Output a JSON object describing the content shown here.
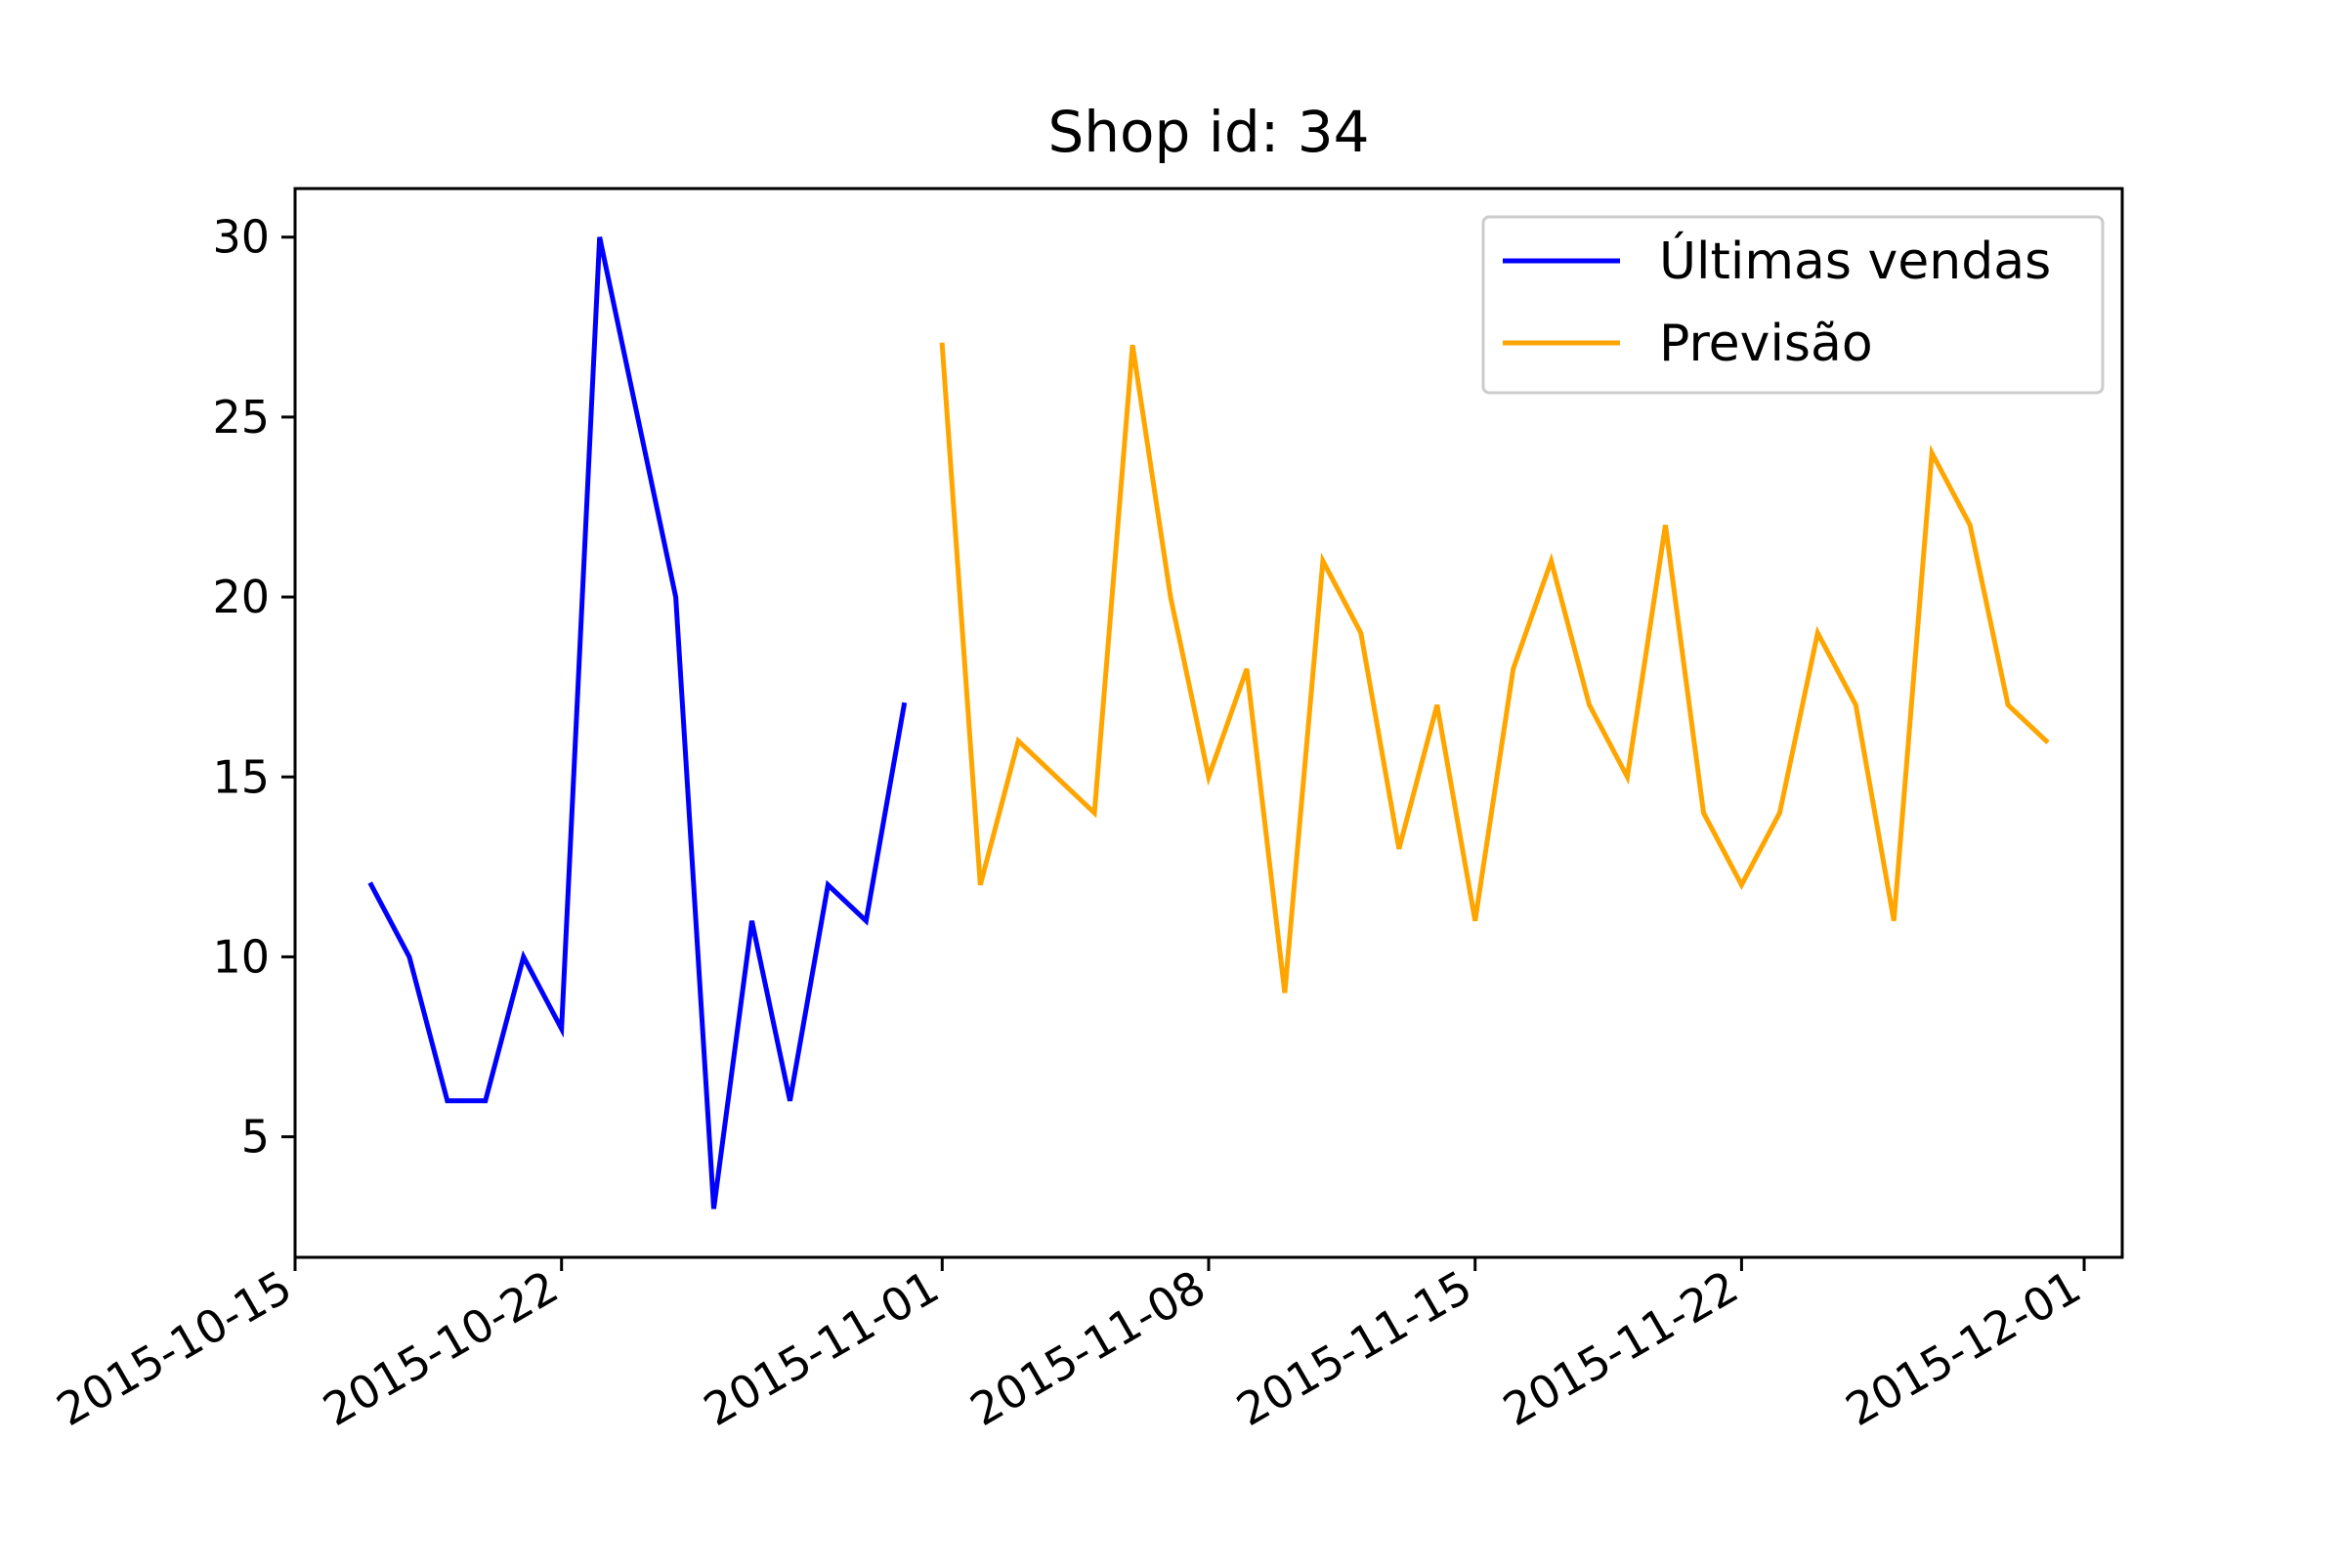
{
  "chart_data": {
    "type": "line",
    "title": "Shop id: 34",
    "xlabel": "",
    "ylabel": "",
    "x_axis_type": "date",
    "xlim": [
      "2015-10-15",
      "2015-12-02"
    ],
    "ylim": [
      1.65,
      31.35
    ],
    "x_ticks": [
      "2015-10-15",
      "2015-10-22",
      "2015-11-01",
      "2015-11-08",
      "2015-11-15",
      "2015-11-22",
      "2015-12-01"
    ],
    "y_ticks": [
      5,
      10,
      15,
      20,
      25,
      30
    ],
    "grid": false,
    "legend_position": "upper right",
    "series": [
      {
        "name": "Últimas vendas",
        "color": "#0000ff",
        "x": [
          "2015-10-17",
          "2015-10-18",
          "2015-10-19",
          "2015-10-20",
          "2015-10-21",
          "2015-10-22",
          "2015-10-23",
          "2015-10-24",
          "2015-10-25",
          "2015-10-26",
          "2015-10-27",
          "2015-10-28",
          "2015-10-29",
          "2015-10-30",
          "2015-10-31"
        ],
        "y": [
          12,
          10,
          6,
          6,
          10,
          8,
          30,
          25,
          20,
          3,
          11,
          6,
          12,
          11,
          17
        ]
      },
      {
        "name": "Previsão",
        "color": "#ffa500",
        "x": [
          "2015-11-01",
          "2015-11-02",
          "2015-11-03",
          "2015-11-04",
          "2015-11-05",
          "2015-11-06",
          "2015-11-07",
          "2015-11-08",
          "2015-11-09",
          "2015-11-10",
          "2015-11-11",
          "2015-11-12",
          "2015-11-13",
          "2015-11-14",
          "2015-11-15",
          "2015-11-16",
          "2015-11-17",
          "2015-11-18",
          "2015-11-19",
          "2015-11-20",
          "2015-11-21",
          "2015-11-22",
          "2015-11-23",
          "2015-11-24",
          "2015-11-25",
          "2015-11-26",
          "2015-11-27",
          "2015-11-28",
          "2015-11-29",
          "2015-11-30"
        ],
        "y": [
          27,
          12,
          16,
          15,
          14,
          27,
          20,
          15,
          18,
          9,
          21,
          19,
          13,
          17,
          11,
          18,
          21,
          17,
          15,
          22,
          14,
          12,
          14,
          19,
          17,
          11,
          24,
          22,
          17,
          16
        ]
      }
    ]
  }
}
